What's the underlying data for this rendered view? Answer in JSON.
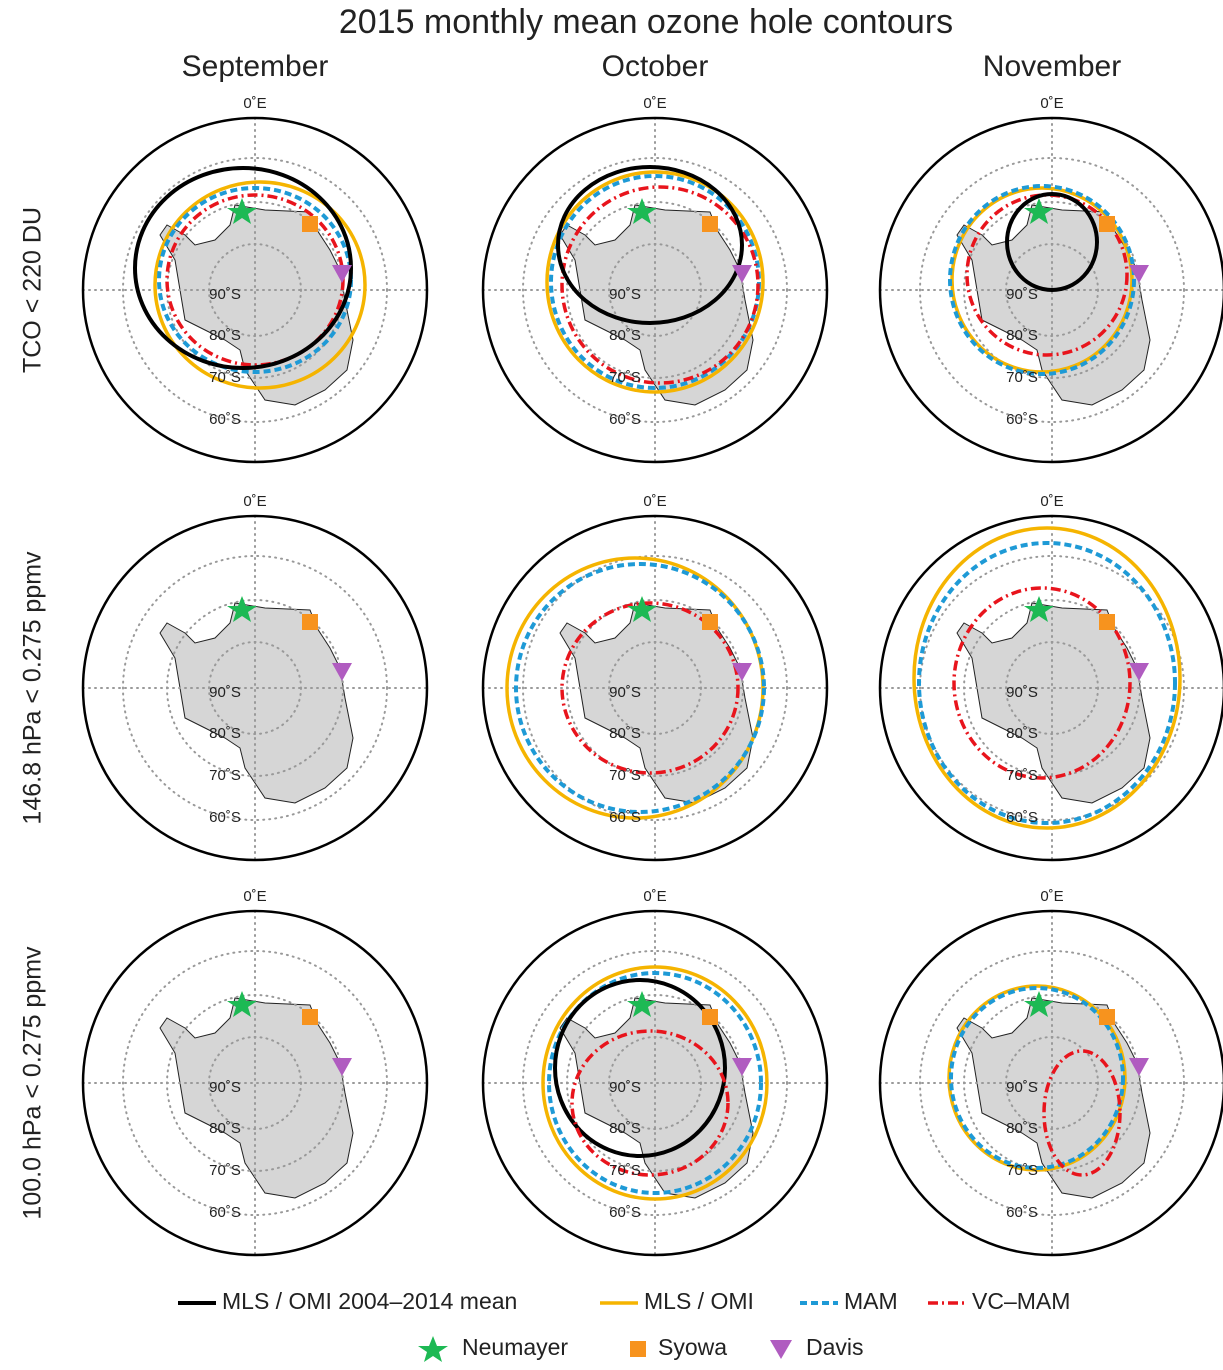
{
  "header": {
    "title": "2015 monthly mean ozone hole contours"
  },
  "columns": [
    "September",
    "October",
    "November"
  ],
  "rows": [
    "TCO < 220 DU",
    "146.8 hPa < 0.275 ppmv",
    "100.0 hPa < 0.275 ppmv"
  ],
  "map_labels": {
    "meridian": "0˚E",
    "latitudes": [
      "90˚S",
      "80˚S",
      "70˚S",
      "60˚S"
    ]
  },
  "legend": {
    "lines": [
      "MLS / OMI 2004–2014 mean",
      "MLS / OMI",
      "MAM",
      "VC–MAM"
    ],
    "stations": [
      "Neumayer",
      "Syowa",
      "Davis"
    ]
  }
}
